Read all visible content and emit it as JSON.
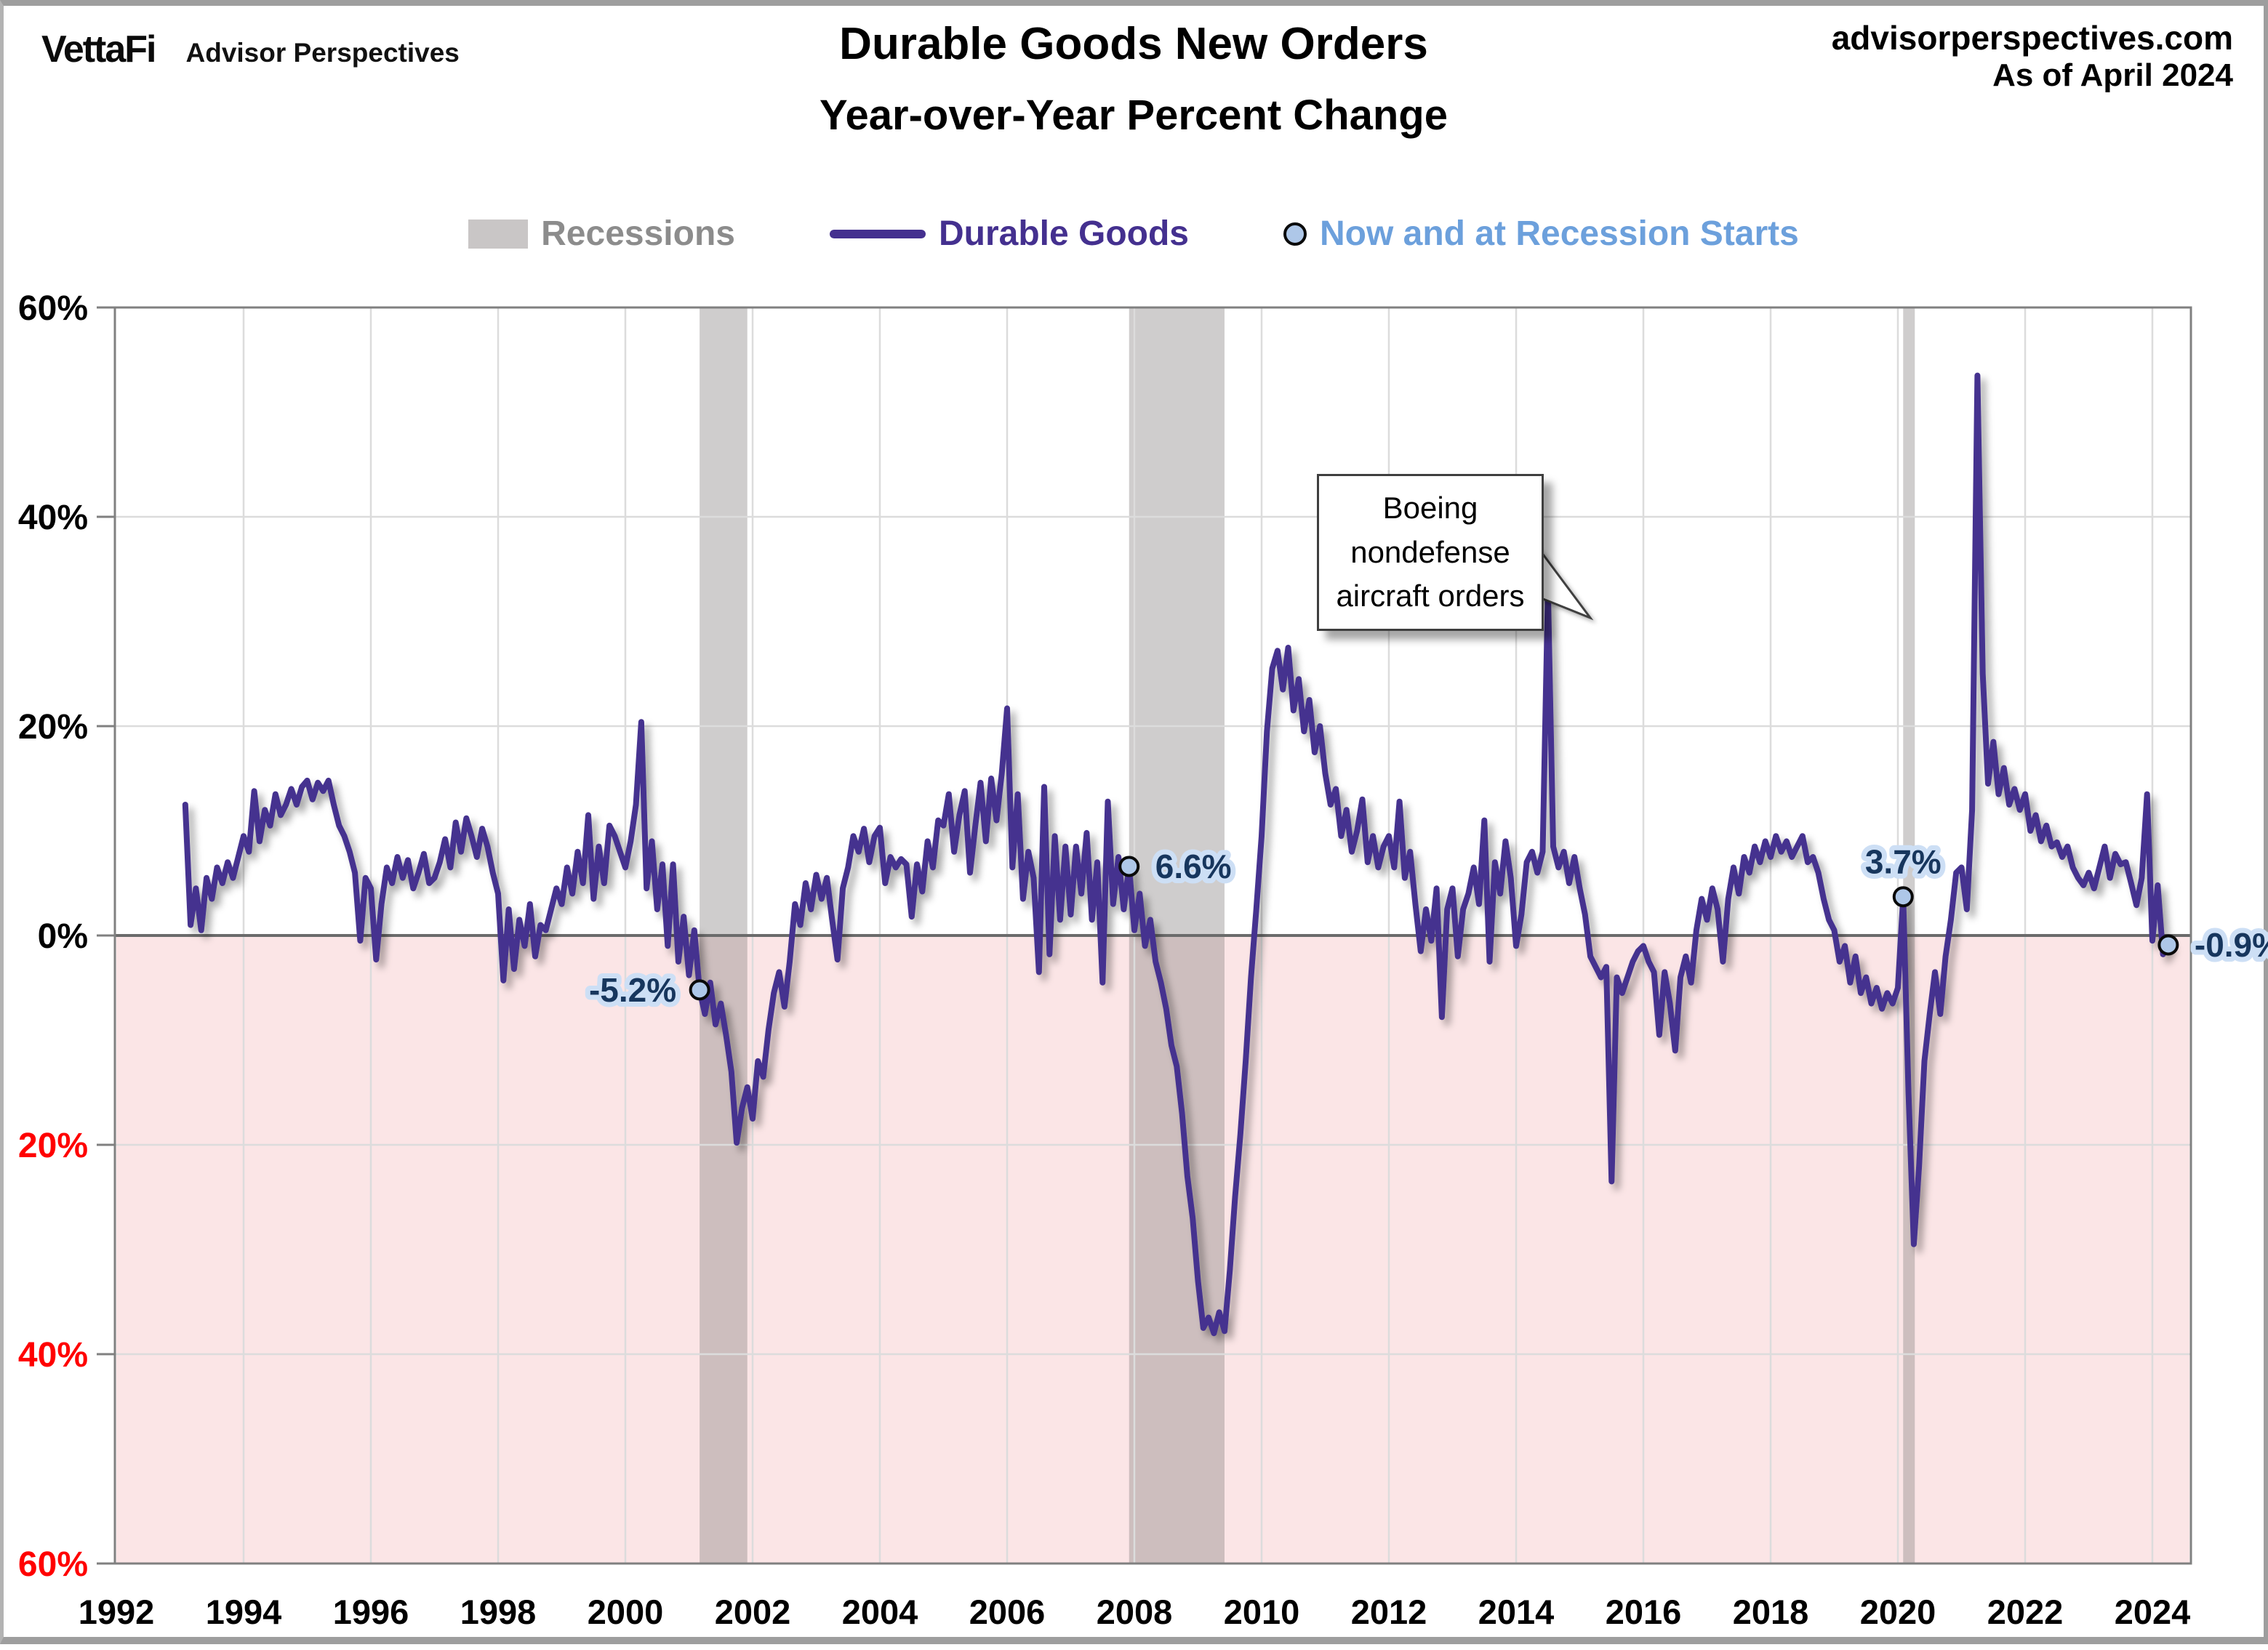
{
  "header": {
    "logo": "VettaFi",
    "logo_sub": "Advisor Perspectives",
    "title_line1": "Durable Goods New Orders",
    "title_line2": "Year-over-Year Percent Change",
    "source": "advisorperspectives.com",
    "as_of": "As of April 2024"
  },
  "legend": [
    {
      "label": "Recessions",
      "swatch": "recession-band",
      "color": "#8C8C8C"
    },
    {
      "label": "Durable Goods",
      "swatch": "line",
      "color": "#44308F"
    },
    {
      "label": "Now and at Recession Starts",
      "swatch": "circle-marker",
      "color": "#6CA0DC"
    }
  ],
  "chart_data": {
    "type": "line",
    "title": "Durable Goods New Orders",
    "subtitle": "Year-over-Year Percent Change",
    "xlabel": "",
    "ylabel": "",
    "ylim": [
      -60,
      60
    ],
    "xlim": [
      1992,
      2024.62
    ],
    "grid": true,
    "legend_position": "top",
    "x_axis": {
      "tick_years": [
        1992,
        1994,
        1996,
        1998,
        2000,
        2002,
        2004,
        2006,
        2008,
        2010,
        2012,
        2014,
        2016,
        2018,
        2020,
        2022,
        2024
      ]
    },
    "y_axis": {
      "tick_step": 20,
      "ticks": [
        {
          "label": "60%",
          "value": 60,
          "color": "#000000"
        },
        {
          "label": "40%",
          "value": 40,
          "color": "#000000"
        },
        {
          "label": "20%",
          "value": 20,
          "color": "#000000"
        },
        {
          "label": "0%",
          "value": 0,
          "color": "#000000"
        },
        {
          "label": "20%",
          "value": -20,
          "color": "#FF0000"
        },
        {
          "label": "40%",
          "value": -40,
          "color": "#FF0000"
        },
        {
          "label": "60%",
          "value": -60,
          "color": "#FF0000"
        }
      ]
    },
    "colors": {
      "line": "#44308F",
      "negative_fill": "#FBE5E6",
      "recession": "#8C8888",
      "marker_fill": "#AEC7E8",
      "marker_stroke": "#0A0A0A",
      "annotation_text": "#17365D",
      "annotation_halo": "#CDDFF5",
      "gridline": "#DCDCDC",
      "zero_line": "#6B6B6B",
      "axis_border": "#808080"
    },
    "recessions": [
      {
        "name": "2001 recession",
        "start": 2001.167,
        "end": 2001.917
      },
      {
        "name": "2008-09 recession",
        "start": 2007.917,
        "end": 2009.417
      },
      {
        "name": "2020 recession",
        "start": 2020.083,
        "end": 2020.25
      }
    ],
    "markers": [
      {
        "label": "-5.2%",
        "date": 2001.167,
        "value": -5.2,
        "label_pos": "left",
        "meaning": "recession start Mar 2001"
      },
      {
        "label": "6.6%",
        "date": 2007.917,
        "value": 6.6,
        "label_pos": "right",
        "meaning": "recession start Dec 2007"
      },
      {
        "label": "3.7%",
        "date": 2020.083,
        "value": 3.7,
        "label_pos": "above",
        "meaning": "recession start Feb 2020"
      },
      {
        "label": "-0.9%",
        "date": 2024.25,
        "value": -0.9,
        "label_pos": "right",
        "meaning": "now (April 2024)"
      }
    ],
    "annotation": {
      "lines": [
        "Boeing",
        "nondefense",
        "aircraft orders"
      ],
      "points_to": {
        "date": 2014.5,
        "value": 33.0
      }
    },
    "series": {
      "name": "Durable Goods",
      "unit": "percent YoY",
      "frequency": "monthly",
      "start_year": 1993,
      "start_month": 2,
      "end": "2024-04",
      "values": [
        12.5,
        1.0,
        4.5,
        0.5,
        5.5,
        3.5,
        6.5,
        5.0,
        7.0,
        5.5,
        7.5,
        9.5,
        8.0,
        13.8,
        9.0,
        12.0,
        10.5,
        13.5,
        11.5,
        12.5,
        14.0,
        12.5,
        14.2,
        14.8,
        13.0,
        14.6,
        13.8,
        14.8,
        12.5,
        10.5,
        9.5,
        8.0,
        6.0,
        -0.5,
        5.5,
        4.5,
        -2.3,
        3.0,
        6.5,
        5.0,
        7.5,
        5.5,
        7.2,
        4.5,
        6.0,
        7.8,
        5.0,
        5.5,
        7.0,
        9.2,
        6.5,
        10.8,
        8.0,
        11.2,
        9.5,
        7.5,
        10.2,
        8.5,
        6.0,
        4.0,
        -4.3,
        2.5,
        -3.2,
        1.5,
        -1.0,
        3.0,
        -2.0,
        1.0,
        0.5,
        2.5,
        4.5,
        3.0,
        6.5,
        4.0,
        8.0,
        5.0,
        11.5,
        3.5,
        8.5,
        5.0,
        10.5,
        9.5,
        8.0,
        6.5,
        9.0,
        12.5,
        20.4,
        4.5,
        9.0,
        2.5,
        6.8,
        -1.0,
        6.8,
        -2.5,
        1.8,
        -3.8,
        0.5,
        -5.2,
        -7.5,
        -4.5,
        -8.5,
        -6.5,
        -9.5,
        -13.0,
        -19.8,
        -16.5,
        -14.5,
        -17.5,
        -12.0,
        -13.5,
        -9.0,
        -5.5,
        -3.5,
        -6.8,
        -2.5,
        3.0,
        1.0,
        5.0,
        2.5,
        5.8,
        3.5,
        5.5,
        1.5,
        -2.3,
        4.5,
        6.5,
        9.5,
        8.0,
        10.2,
        7.0,
        9.5,
        10.3,
        5.0,
        7.5,
        6.5,
        7.3,
        6.8,
        1.8,
        6.8,
        4.2,
        9.0,
        6.5,
        11.0,
        10.5,
        13.5,
        8.0,
        11.5,
        13.8,
        6.0,
        10.5,
        14.6,
        9.0,
        15.0,
        11.0,
        15.5,
        21.7,
        6.5,
        13.5,
        3.5,
        8.0,
        5.5,
        -3.5,
        14.2,
        -1.8,
        9.5,
        1.5,
        8.5,
        2.0,
        8.5,
        4.0,
        9.8,
        1.5,
        7.0,
        -4.5,
        12.8,
        3.0,
        7.5,
        2.5,
        6.6,
        0.5,
        4.0,
        -1.0,
        1.5,
        -2.5,
        -4.5,
        -7.0,
        -10.5,
        -12.5,
        -17.0,
        -23.0,
        -27.0,
        -33.0,
        -37.5,
        -36.5,
        -38.0,
        -36.0,
        -37.8,
        -32.0,
        -25.0,
        -19.0,
        -12.0,
        -4.0,
        2.5,
        9.5,
        19.5,
        25.5,
        27.2,
        23.5,
        27.5,
        21.5,
        24.5,
        19.5,
        22.5,
        17.5,
        20.0,
        15.5,
        12.5,
        14.0,
        9.5,
        12.0,
        8.0,
        10.0,
        13.0,
        7.0,
        9.5,
        6.5,
        8.5,
        9.5,
        6.5,
        12.8,
        5.5,
        8.0,
        3.0,
        -1.5,
        2.5,
        -0.5,
        4.5,
        -7.8,
        2.5,
        4.5,
        -2.0,
        2.5,
        4.0,
        6.5,
        3.0,
        11.0,
        -2.5,
        7.0,
        4.0,
        9.0,
        5.5,
        -1.0,
        2.0,
        7.0,
        8.0,
        6.0,
        8.0,
        33.0,
        8.5,
        6.5,
        8.0,
        5.0,
        7.5,
        4.5,
        2.0,
        -2.0,
        -3.0,
        -4.0,
        -3.0,
        -23.5,
        -4.0,
        -5.5,
        -4.0,
        -2.5,
        -1.5,
        -1.0,
        -2.5,
        -3.5,
        -9.5,
        -3.5,
        -6.5,
        -11.0,
        -4.0,
        -2.0,
        -4.5,
        0.5,
        3.5,
        1.5,
        4.5,
        2.5,
        -2.5,
        3.5,
        6.5,
        4.0,
        7.5,
        6.0,
        8.5,
        7.0,
        9.0,
        7.5,
        9.5,
        8.0,
        9.0,
        7.5,
        8.5,
        9.5,
        7.0,
        7.5,
        6.0,
        3.5,
        1.5,
        0.5,
        -2.5,
        -1.0,
        -4.5,
        -2.0,
        -5.5,
        -4.0,
        -6.5,
        -5.0,
        -7.0,
        -5.5,
        -6.5,
        -5.0,
        3.7,
        -15.0,
        -29.5,
        -22.0,
        -12.0,
        -7.5,
        -3.5,
        -7.5,
        -2.0,
        1.5,
        6.0,
        6.5,
        2.5,
        12.0,
        53.5,
        25.0,
        14.5,
        18.5,
        13.5,
        16.0,
        12.5,
        14.0,
        12.0,
        13.5,
        10.0,
        11.5,
        9.0,
        10.5,
        8.5,
        8.9,
        7.5,
        8.5,
        6.5,
        5.5,
        4.8,
        6.0,
        4.5,
        6.5,
        8.5,
        5.5,
        7.8,
        6.8,
        7.0,
        5.0,
        2.9,
        5.5,
        13.5,
        -0.5,
        4.8,
        -1.8,
        -0.9
      ]
    }
  }
}
